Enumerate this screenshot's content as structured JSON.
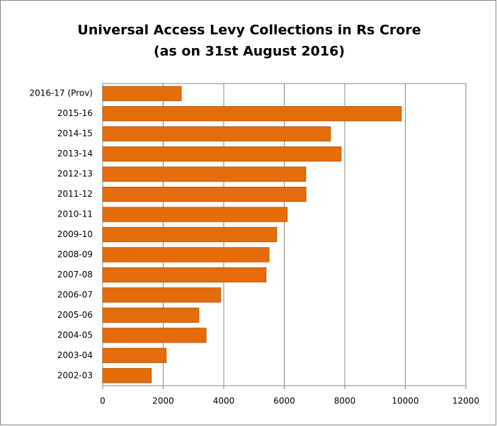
{
  "chart_data": {
    "type": "barh",
    "title": "Universal Access Levy Collections in Rs Crore",
    "subtitle": "(as on 31st August 2016)",
    "categories": [
      "2016-17 (Prov)",
      "2015-16",
      "2014-15",
      "2013-14",
      "2012-13",
      "2011-12",
      "2010-11",
      "2009-10",
      "2008-09",
      "2007-08",
      "2006-07",
      "2005-06",
      "2004-05",
      "2003-04",
      "2002-03"
    ],
    "values": [
      2600,
      9870,
      7530,
      7880,
      6710,
      6720,
      6100,
      5750,
      5500,
      5400,
      3900,
      3180,
      3420,
      2100,
      1610
    ],
    "color": "#e46c0a",
    "xlim": [
      0,
      12000
    ],
    "xticks": [
      0,
      2000,
      4000,
      6000,
      8000,
      10000,
      12000
    ],
    "grid": true
  }
}
